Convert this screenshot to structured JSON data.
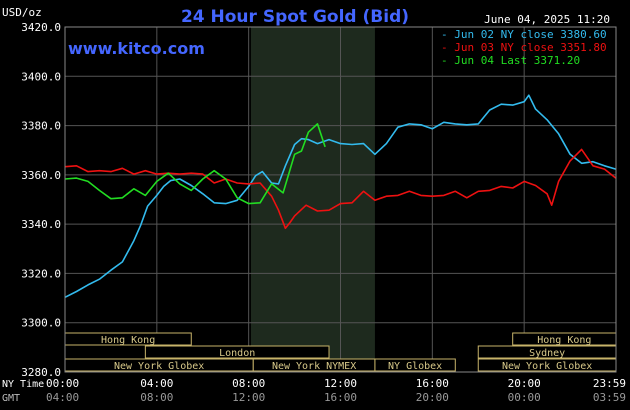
{
  "chart_data": {
    "type": "line",
    "title": "24 Hour Spot Gold (Bid)",
    "watermark": "www.kitco.com",
    "date_label": "June 04, 2025 11:20",
    "ylabel": "USD/oz",
    "ylim": [
      3280,
      3420
    ],
    "yticks": [
      "3420.0",
      "3400.0",
      "3380.0",
      "3360.0",
      "3340.0",
      "3320.0",
      "3300.0",
      "3280.0"
    ],
    "xlim": [
      0,
      24
    ],
    "xtick_hours": [
      0,
      4,
      8,
      12,
      16,
      20,
      24
    ],
    "ny_time_label": "NY Time",
    "gmt_label": "GMT",
    "ny_ticks": [
      "00:00",
      "04:00",
      "08:00",
      "12:00",
      "16:00",
      "20:00",
      "23:59"
    ],
    "gmt_ticks": [
      "04:00",
      "08:00",
      "12:00",
      "16:00",
      "20:00",
      "00:00",
      "03:59"
    ],
    "grid": true,
    "shaded_range": [
      8.1,
      13.5
    ],
    "legend_position": "top-right",
    "colors": {
      "blue": "#33bbee",
      "red": "#ee1111",
      "green": "#22dd22",
      "title": "#4466ff"
    },
    "legend": [
      {
        "text": "- Jun 02 NY close 3380.60",
        "color": "#33bbee"
      },
      {
        "text": "- Jun 03 NY close 3351.80",
        "color": "#ee1111"
      },
      {
        "text": "- Jun 04 Last 3371.20",
        "color": "#22dd22"
      }
    ],
    "sessions": [
      {
        "name": "Hong Kong",
        "row": 0,
        "start": 0,
        "end": 5.5
      },
      {
        "name": "Hong Kong",
        "row": 0,
        "start": 19.5,
        "end": 24
      },
      {
        "name": "London",
        "row": 1,
        "start": 3.5,
        "end": 11.5
      },
      {
        "name": "Sydney",
        "row": 1,
        "start": 18,
        "end": 24
      },
      {
        "name": "New York Globex",
        "row": 2,
        "start": 0,
        "end": 8.2
      },
      {
        "name": "New York NYMEX",
        "row": 2,
        "start": 8.2,
        "end": 13.5
      },
      {
        "name": "NY Globex",
        "row": 2,
        "start": 13.5,
        "end": 17
      },
      {
        "name": "New York Globex",
        "row": 2,
        "start": 18,
        "end": 24
      }
    ],
    "series": [
      {
        "name": "Jun 02",
        "color": "#33bbee",
        "x": [
          0,
          0.5,
          1,
          1.5,
          2,
          2.5,
          3,
          3.3,
          3.6,
          4,
          4.3,
          4.6,
          5,
          5.5,
          6,
          6.5,
          7,
          7.5,
          8,
          8.3,
          8.6,
          9,
          9.3,
          9.6,
          10,
          10.3,
          10.6,
          11,
          11.5,
          12,
          12.5,
          13,
          13.5,
          14,
          14.5,
          15,
          15.5,
          16,
          16.5,
          17,
          17.5,
          18,
          18.5,
          19,
          19.5,
          20,
          20.2,
          20.5,
          21,
          21.5,
          22,
          22.5,
          23,
          23.5,
          23.99
        ],
        "y": [
          3310,
          3313,
          3315,
          3318,
          3321,
          3325,
          3333,
          3340,
          3347,
          3352,
          3355,
          3358,
          3358,
          3356,
          3352,
          3349,
          3348,
          3350,
          3355,
          3360,
          3361,
          3357,
          3356,
          3364,
          3372,
          3375,
          3374,
          3373,
          3374,
          3373,
          3372,
          3373,
          3368,
          3373,
          3379,
          3381,
          3380,
          3379,
          3381,
          3381,
          3380,
          3381,
          3386,
          3389,
          3388,
          3390,
          3392,
          3387,
          3382,
          3377,
          3368,
          3365,
          3365,
          3364,
          3362
        ]
      },
      {
        "name": "Jun 03",
        "color": "#ee1111",
        "x": [
          0,
          0.5,
          1,
          1.5,
          2,
          2.5,
          3,
          3.5,
          4,
          4.5,
          5,
          5.5,
          6,
          6.5,
          7,
          7.5,
          8,
          8.5,
          9,
          9.3,
          9.6,
          9.8,
          10,
          10.5,
          11,
          11.5,
          12,
          12.5,
          13,
          13.5,
          14,
          14.5,
          15,
          15.5,
          16,
          16.5,
          17,
          17.5,
          18,
          18.5,
          19,
          19.5,
          20,
          20.5,
          21,
          21.2,
          21.5,
          22,
          22.5,
          23,
          23.5,
          23.99
        ],
        "y": [
          3363,
          3364,
          3361,
          3362,
          3361,
          3363,
          3360,
          3362,
          3360,
          3361,
          3360,
          3361,
          3360,
          3357,
          3358,
          3357,
          3356,
          3357,
          3351,
          3346,
          3338,
          3341,
          3343,
          3348,
          3345,
          3346,
          3348,
          3349,
          3353,
          3350,
          3351,
          3352,
          3353,
          3352,
          3351,
          3352,
          3353,
          3351,
          3353,
          3354,
          3355,
          3355,
          3357,
          3356,
          3352,
          3348,
          3357,
          3366,
          3370,
          3364,
          3362,
          3359
        ]
      },
      {
        "name": "Jun 04",
        "color": "#22dd22",
        "x": [
          0,
          0.5,
          1,
          1.5,
          2,
          2.5,
          3,
          3.5,
          4,
          4.5,
          5,
          5.5,
          6,
          6.5,
          7,
          7.5,
          8,
          8.5,
          9,
          9.5,
          10,
          10.3,
          10.6,
          11,
          11.33
        ],
        "y": [
          3358,
          3359,
          3357,
          3354,
          3350,
          3351,
          3354,
          3352,
          3357,
          3361,
          3356,
          3354,
          3358,
          3362,
          3358,
          3351,
          3348,
          3349,
          3356,
          3353,
          3368,
          3370,
          3377,
          3381,
          3371
        ]
      }
    ]
  }
}
